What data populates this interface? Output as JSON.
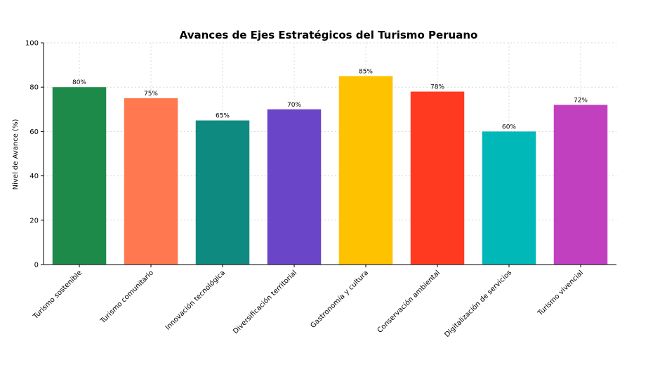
{
  "chart_data": {
    "type": "bar",
    "title": "Avances de Ejes Estratégicos del Turismo Peruano",
    "xlabel": "",
    "ylabel": "Nivel de Avance (%)",
    "ylim": [
      0,
      100
    ],
    "yticks": [
      0,
      20,
      40,
      60,
      80,
      100
    ],
    "grid": true,
    "categories": [
      "Turismo sostenible",
      "Turismo comunitario",
      "Innovación tecnológica",
      "Diversificación territorial",
      "Gastronomía y cultura",
      "Conservación ambiental",
      "Digitalización de servicios",
      "Turismo vivencial"
    ],
    "values": [
      80,
      75,
      65,
      70,
      85,
      78,
      60,
      72
    ],
    "data_labels": [
      "80%",
      "75%",
      "65%",
      "70%",
      "85%",
      "78%",
      "60%",
      "72%"
    ],
    "colors": [
      "#1e8a4a",
      "#ff7850",
      "#0f8a80",
      "#6a45c8",
      "#ffc200",
      "#ff3a20",
      "#00b8b8",
      "#c040c0"
    ]
  }
}
